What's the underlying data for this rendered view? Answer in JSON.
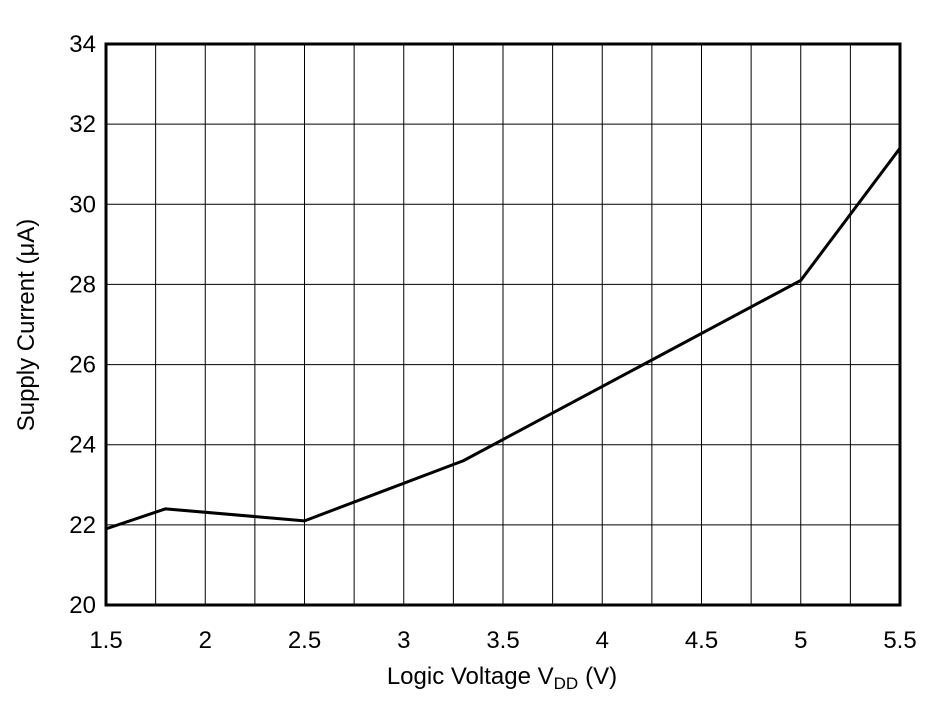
{
  "chart_data": {
    "type": "line",
    "x_label": {
      "text": "Logic Voltage V",
      "subscript": "DD",
      "suffix": "(V)"
    },
    "y_label": "Supply Current (μA)",
    "x": [
      1.5,
      1.8,
      2.5,
      3.3,
      5.0,
      5.5
    ],
    "series": [
      {
        "color": "#000000",
        "values": [
          21.9,
          22.4,
          22.1,
          23.6,
          28.1,
          31.4
        ]
      }
    ],
    "xlim": [
      1.5,
      5.5
    ],
    "xticks": [
      1.5,
      2,
      2.5,
      3,
      3.5,
      4,
      4.5,
      5,
      5.5
    ],
    "x_minor_grid": [
      1.75,
      2.25,
      2.75,
      3.25,
      3.75,
      4.25,
      4.75,
      5.25
    ],
    "ylim": [
      20,
      34
    ],
    "yticks": [
      20,
      22,
      24,
      26,
      28,
      30,
      32,
      34
    ],
    "grid": true
  }
}
